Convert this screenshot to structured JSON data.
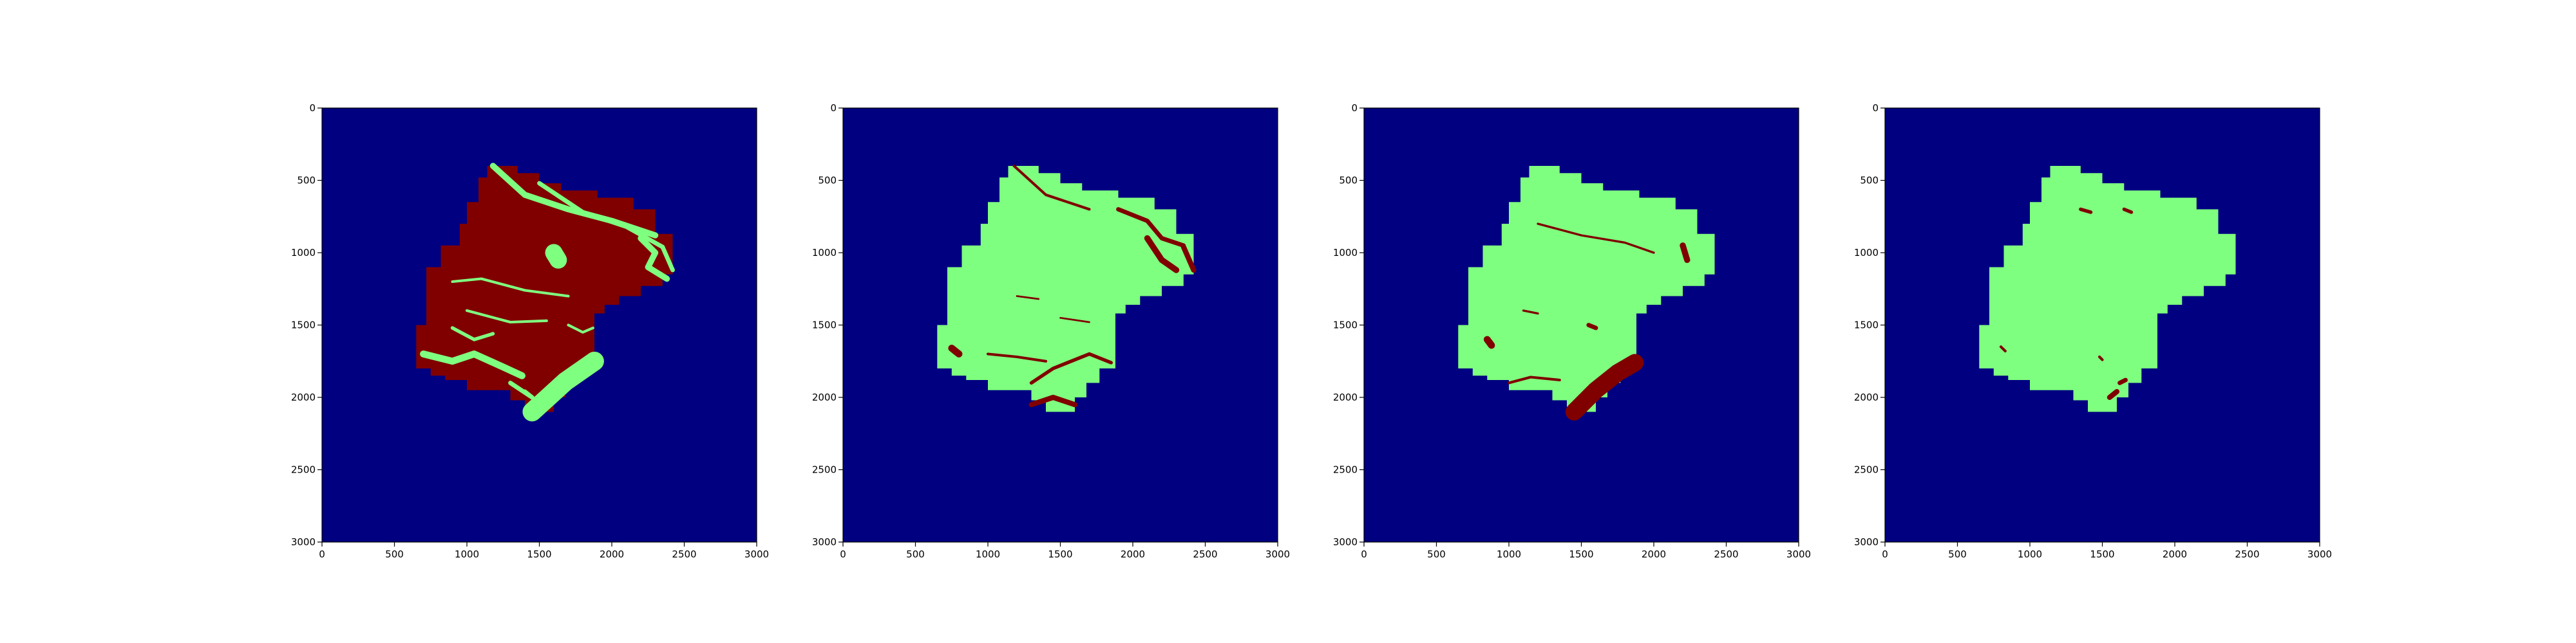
{
  "colors": {
    "background": "#000080",
    "class_high": "#800000",
    "class_mid": "#7FFF7F",
    "axis": "#000000"
  },
  "chart_data": [
    {
      "type": "heatmap",
      "panel": 1,
      "xlim": [
        0,
        3000
      ],
      "ylim": [
        3000,
        0
      ],
      "xticks": [
        "0",
        "500",
        "1000",
        "1500",
        "2000",
        "2500",
        "3000"
      ],
      "yticks": [
        "0",
        "500",
        "1000",
        "1500",
        "2000",
        "2500",
        "3000"
      ],
      "fill": "class_high",
      "features": "class_mid"
    },
    {
      "type": "heatmap",
      "panel": 2,
      "xlim": [
        0,
        3000
      ],
      "ylim": [
        3000,
        0
      ],
      "xticks": [
        "0",
        "500",
        "1000",
        "1500",
        "2000",
        "2500",
        "3000"
      ],
      "yticks": [
        "0",
        "500",
        "1000",
        "1500",
        "2000",
        "2500",
        "3000"
      ],
      "fill": "class_mid",
      "features": "class_high"
    },
    {
      "type": "heatmap",
      "panel": 3,
      "xlim": [
        0,
        3000
      ],
      "ylim": [
        3000,
        0
      ],
      "xticks": [
        "0",
        "500",
        "1000",
        "1500",
        "2000",
        "2500",
        "3000"
      ],
      "yticks": [
        "0",
        "500",
        "1000",
        "1500",
        "2000",
        "2500",
        "3000"
      ],
      "fill": "class_mid",
      "features": "class_high"
    },
    {
      "type": "heatmap",
      "panel": 4,
      "xlim": [
        0,
        3000
      ],
      "ylim": [
        3000,
        0
      ],
      "xticks": [
        "0",
        "500",
        "1000",
        "1500",
        "2000",
        "2500",
        "3000"
      ],
      "yticks": [
        "0",
        "500",
        "1000",
        "1500",
        "2000",
        "2500",
        "3000"
      ],
      "fill": "class_mid",
      "features": "class_high"
    }
  ]
}
